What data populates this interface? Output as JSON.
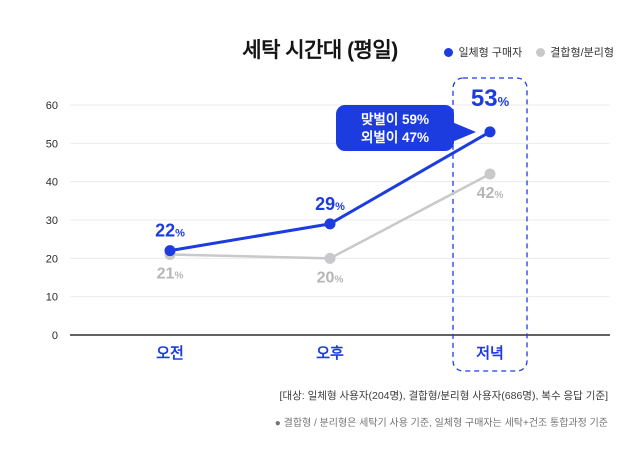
{
  "chart_data": {
    "type": "line",
    "title": "세탁 시간대 (평일)",
    "categories": [
      "오전",
      "오후",
      "저녁"
    ],
    "series": [
      {
        "name": "일체형 구매자",
        "color": "#1c3ce0",
        "label_color": "#1c3ce0",
        "values": [
          22,
          29,
          53
        ]
      },
      {
        "name": "결합형/분리형",
        "color": "#c9c9cb",
        "label_color": "#b6b6b8",
        "values": [
          21,
          20,
          42
        ]
      }
    ],
    "unit": "%",
    "ylim": [
      0,
      60
    ],
    "yticks": [
      0,
      10,
      20,
      30,
      40,
      50,
      60
    ],
    "grid": true,
    "legend_position": "top-right",
    "highlight_category": "저녁",
    "annotation": {
      "lines": [
        "맞벌이 59%",
        "외벌이 47%"
      ],
      "target": "저녁"
    }
  },
  "colors": {
    "accent_blue": "#1c3ce0",
    "line_gray": "#c9c9cb",
    "label_gray": "#b6b6b8",
    "axis": "#2e2e2e",
    "gridline": "#ebebeb"
  },
  "footer": {
    "line1": "[대상: 일체형 사용자(204명), 결합형/분리형 사용자(686명), 복수 응답 기준]",
    "line2": "● 결합형 / 분리형은 세탁기 사용 기준, 일체형 구매자는 세탁+건조 통합과정 기준"
  }
}
